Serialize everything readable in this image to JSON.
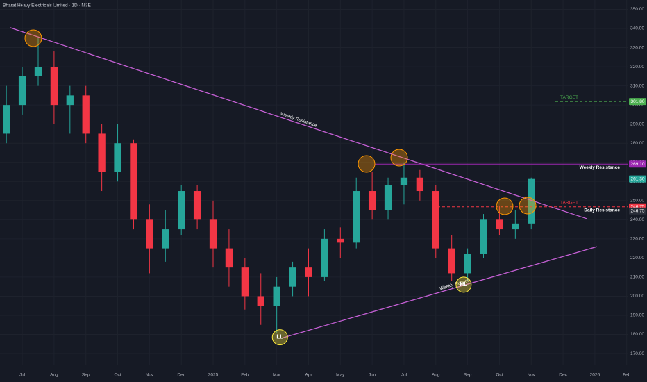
{
  "chart_data": {
    "type": "candlestick",
    "title": "Bharat Heavy Electricals Limited · 1D · NSE",
    "categories": [
      null,
      null,
      null,
      null,
      null,
      null,
      null,
      null,
      null,
      null,
      null,
      null,
      null,
      null,
      null,
      null,
      null,
      null,
      null,
      null,
      null,
      null,
      null,
      null,
      null,
      null,
      null,
      null,
      null,
      null,
      null,
      null,
      null,
      null
    ],
    "open": [
      285,
      300,
      315,
      320,
      300,
      305,
      285,
      265,
      280,
      240,
      225,
      235,
      255,
      240,
      225,
      215,
      200,
      195,
      205,
      215,
      210,
      230,
      228,
      255,
      245,
      258,
      262,
      255,
      225,
      212,
      222,
      240,
      235,
      238
    ],
    "high": [
      310,
      320,
      335,
      328,
      310,
      310,
      290,
      290,
      282,
      248,
      245,
      258,
      258,
      250,
      235,
      220,
      212,
      210,
      218,
      225,
      235,
      236,
      262,
      265,
      262,
      270,
      266,
      258,
      232,
      225,
      243,
      247,
      245,
      262
    ],
    "low": [
      280,
      295,
      310,
      290,
      285,
      280,
      255,
      260,
      235,
      212,
      218,
      232,
      235,
      215,
      205,
      193,
      185,
      181,
      200,
      200,
      208,
      220,
      225,
      240,
      240,
      248,
      250,
      220,
      208,
      208,
      220,
      232,
      230,
      235
    ],
    "close": [
      300,
      315,
      320,
      300,
      305,
      285,
      265,
      280,
      240,
      225,
      235,
      255,
      240,
      225,
      215,
      200,
      195,
      205,
      215,
      210,
      230,
      228,
      255,
      245,
      258,
      262,
      255,
      225,
      212,
      222,
      240,
      235,
      238,
      261.3
    ],
    "up_color": "#26a69a",
    "down_color": "#f23645",
    "xlim": [
      -0.4,
      39.1
    ],
    "xticks": [
      {
        "value": 1,
        "label": "Jul"
      },
      {
        "value": 3,
        "label": "Aug"
      },
      {
        "value": 5,
        "label": "Sep"
      },
      {
        "value": 7,
        "label": "Oct"
      },
      {
        "value": 9,
        "label": "Nov"
      },
      {
        "value": 11,
        "label": "Dec"
      },
      {
        "value": 13,
        "label": "2025"
      },
      {
        "value": 15,
        "label": "Feb"
      },
      {
        "value": 17,
        "label": "Mar"
      },
      {
        "value": 19,
        "label": "Apr"
      },
      {
        "value": 21,
        "label": "May"
      },
      {
        "value": 23,
        "label": "Jun"
      },
      {
        "value": 25,
        "label": "Jul"
      },
      {
        "value": 27,
        "label": "Aug"
      },
      {
        "value": 29,
        "label": "Sep"
      },
      {
        "value": 31,
        "label": "Oct"
      },
      {
        "value": 33,
        "label": "Nov"
      },
      {
        "value": 35,
        "label": "Dec"
      },
      {
        "value": 37,
        "label": "2026"
      },
      {
        "value": 39,
        "label": "Feb"
      }
    ],
    "ylim": [
      164.2,
      354.9
    ],
    "yticks": [
      {
        "value": 170,
        "label": "170.00"
      },
      {
        "value": 180,
        "label": "180.00"
      },
      {
        "value": 190,
        "label": "190.00"
      },
      {
        "value": 200,
        "label": "200.00"
      },
      {
        "value": 210,
        "label": "210.00"
      },
      {
        "value": 220,
        "label": "220.00"
      },
      {
        "value": 230,
        "label": "230.00"
      },
      {
        "value": 240,
        "label": "240.00"
      },
      {
        "value": 250,
        "label": "250.00"
      },
      {
        "value": 260,
        "label": "260.00"
      },
      {
        "value": 270,
        "label": "270.00"
      },
      {
        "value": 280,
        "label": "280.00"
      },
      {
        "value": 290,
        "label": "290.00"
      },
      {
        "value": 300,
        "label": "300.00"
      },
      {
        "value": 310,
        "label": "310.00"
      },
      {
        "value": 320,
        "label": "320.00"
      },
      {
        "value": 330,
        "label": "330.00"
      },
      {
        "value": 340,
        "label": "340.00"
      },
      {
        "value": 350,
        "label": "350.00"
      }
    ],
    "grid": true,
    "trendlines": [
      {
        "name": "Weekly Resistance",
        "x": [
          0.25,
          36.5
        ],
        "y": [
          340.4,
          240.5
        ],
        "color": "#c660d6"
      },
      {
        "name": "Weekly Support",
        "x": [
          17.28,
          37.13
        ],
        "y": [
          178,
          225.9
        ],
        "color": "#c660d6"
      }
    ],
    "levels": [
      {
        "value": 301.8,
        "label": "301.80",
        "name": "TARGET",
        "color": "#4caf50",
        "style": "dashed"
      },
      {
        "value": 269.1,
        "label": "269.10",
        "name": "Weekly Resistance",
        "color": "#9c27b0",
        "style": "solid"
      },
      {
        "value": 261.3,
        "label": "261.30",
        "color": "#26a69a",
        "style": "none"
      },
      {
        "value": 246.75,
        "label": "246.75",
        "name": "TARGET",
        "color": "#f23645",
        "style": "dashed"
      },
      {
        "value": 246.75,
        "label": "246.75",
        "name": "Daily Resistance",
        "color": "#2a2e39",
        "style": "none"
      }
    ],
    "markers": [
      {
        "label": "LL",
        "x": 17.2,
        "y": 178.5
      },
      {
        "label": "HL",
        "x": 28.75,
        "y": 206
      }
    ]
  }
}
